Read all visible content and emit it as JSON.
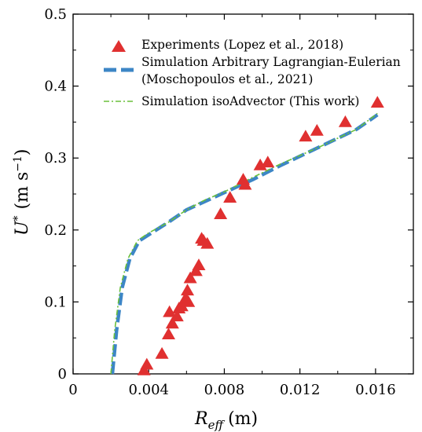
{
  "chart_data": {
    "type": "scatter",
    "xlabel": "R_eff (m)",
    "xlabel_main": "R",
    "xlabel_sub": "eff",
    "xlabel_unit": "(m)",
    "ylabel": "U* (m s^-1)",
    "ylabel_main": "U",
    "ylabel_sup": "*",
    "ylabel_unit_open": "(m s",
    "ylabel_unit_exp": "−1",
    "ylabel_unit_close": ")",
    "xlim": [
      0,
      0.018
    ],
    "ylim": [
      0,
      0.5
    ],
    "xticks": [
      "0",
      "0.004",
      "0.008",
      "0.012",
      "0.016"
    ],
    "xtick_values": [
      0,
      0.004,
      0.008,
      0.012,
      0.016
    ],
    "yticks": [
      "0",
      "0.1",
      "0.2",
      "0.3",
      "0.4",
      "0.5"
    ],
    "ytick_values": [
      0,
      0.1,
      0.2,
      0.3,
      0.4,
      0.5
    ],
    "grid": false,
    "legend_position": "top",
    "series": [
      {
        "name": "Experiments (Lopez et al., 2018)",
        "kind": "scatter",
        "marker": "triangle",
        "color": "#e03030",
        "x": [
          0.00375,
          0.0039,
          0.0047,
          0.00505,
          0.0051,
          0.00525,
          0.0055,
          0.0056,
          0.00575,
          0.00595,
          0.00605,
          0.0061,
          0.0062,
          0.0065,
          0.00665,
          0.0068,
          0.0069,
          0.0071,
          0.0078,
          0.0083,
          0.009,
          0.0091,
          0.0099,
          0.0103,
          0.0123,
          0.0129,
          0.0144,
          0.0161
        ],
        "y": [
          0.005,
          0.013,
          0.028,
          0.055,
          0.086,
          0.07,
          0.08,
          0.091,
          0.094,
          0.105,
          0.116,
          0.1,
          0.133,
          0.143,
          0.151,
          0.188,
          0.185,
          0.181,
          0.222,
          0.245,
          0.27,
          0.263,
          0.29,
          0.294,
          0.33,
          0.338,
          0.35,
          0.377
        ]
      },
      {
        "name": "Simulation Arbitrary Lagrangian-Eulerian",
        "name_line2": "(Moschopoulos et al., 2021)",
        "kind": "line",
        "style": "dashed",
        "color": "#3d86c6",
        "x": [
          0.00208,
          0.0023,
          0.0026,
          0.003,
          0.0035,
          0.0041,
          0.005,
          0.006,
          0.007,
          0.008,
          0.0095,
          0.011,
          0.013,
          0.015,
          0.0161
        ],
        "y": [
          0.0,
          0.06,
          0.12,
          0.16,
          0.185,
          0.195,
          0.21,
          0.228,
          0.24,
          0.252,
          0.27,
          0.29,
          0.315,
          0.34,
          0.36
        ]
      },
      {
        "name": "Simulation isoAdvector (This work)",
        "kind": "line",
        "style": "dashdot",
        "color": "#6abf3c",
        "x": [
          0.002,
          0.0022,
          0.0025,
          0.0029,
          0.0034,
          0.004,
          0.005,
          0.006,
          0.007,
          0.008,
          0.0095,
          0.011,
          0.013,
          0.015,
          0.0161
        ],
        "y": [
          0.0,
          0.06,
          0.12,
          0.16,
          0.185,
          0.196,
          0.21,
          0.228,
          0.242,
          0.253,
          0.273,
          0.292,
          0.315,
          0.34,
          0.362
        ]
      }
    ]
  }
}
